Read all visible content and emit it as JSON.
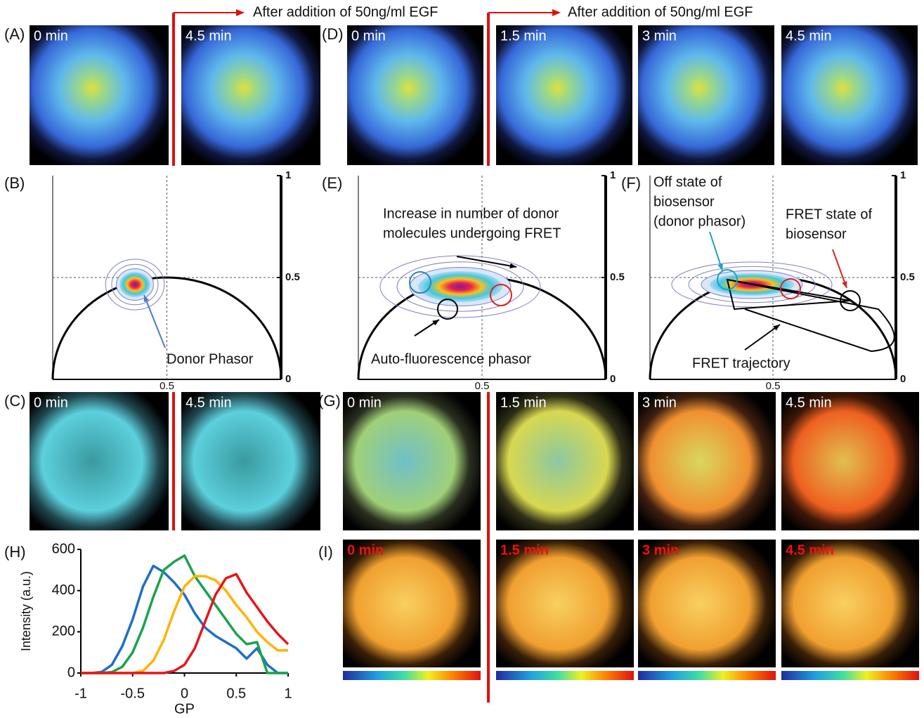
{
  "header": {
    "arrows": [
      "After addition of 50ng/ml EGF",
      "After addition of 50ng/ml EGF"
    ]
  },
  "panels": {
    "A": {
      "label": "(A)",
      "times": [
        "0 min",
        "4.5 min"
      ]
    },
    "D": {
      "label": "(D)",
      "times": [
        "0 min",
        "1.5 min",
        "3 min",
        "4.5 min"
      ]
    },
    "B": {
      "label": "(B)",
      "annotations": [
        "Donor Phasor"
      ],
      "xlim": [
        0,
        1
      ],
      "ylim": [
        0,
        1
      ],
      "xticks": [
        0.5
      ],
      "yticks": [
        0,
        0.5,
        1
      ]
    },
    "E": {
      "label": "(E)",
      "annotations": [
        "Increase in number of donor",
        "molecules undergoing FRET",
        "Auto-fluorescence phasor"
      ],
      "xlim": [
        0,
        1
      ],
      "ylim": [
        0,
        1
      ],
      "xticks": [
        0.5
      ],
      "yticks": [
        0,
        0.5,
        1
      ]
    },
    "F": {
      "label": "(F)",
      "annotations": [
        "Off state of",
        "biosensor",
        "(donor phasor)",
        "FRET state of",
        "biosensor",
        "FRET trajectory"
      ],
      "xlim": [
        0,
        1
      ],
      "ylim": [
        0,
        1
      ],
      "xticks": [
        0.5
      ],
      "yticks": [
        0,
        0.5,
        1
      ]
    },
    "C": {
      "label": "(C)",
      "times": [
        "0 min",
        "4.5 min"
      ]
    },
    "G": {
      "label": "(G)",
      "times": [
        "0 min",
        "1.5 min",
        "3 min",
        "4.5 min"
      ]
    },
    "H": {
      "label": "(H)"
    },
    "I": {
      "label": "(I)",
      "times": [
        "0 min",
        "1.5 min",
        "3 min",
        "4.5 min"
      ]
    }
  },
  "chart_data": {
    "type": "line",
    "x_label": "GP",
    "y_label": "Intensity (a.u.)",
    "x": [
      -1,
      -0.9,
      -0.8,
      -0.7,
      -0.6,
      -0.5,
      -0.4,
      -0.3,
      -0.2,
      -0.1,
      0,
      0.1,
      0.2,
      0.3,
      0.4,
      0.5,
      0.6,
      0.7,
      0.8,
      0.9,
      1
    ],
    "series": [
      {
        "color": "#1f6fc4",
        "values": [
          0,
          0,
          5,
          40,
          130,
          260,
          420,
          520,
          490,
          440,
          380,
          290,
          220,
          180,
          150,
          120,
          70,
          120,
          40,
          0,
          0
        ]
      },
      {
        "color": "#1aa34a",
        "values": [
          0,
          0,
          0,
          5,
          30,
          100,
          220,
          370,
          500,
          540,
          570,
          470,
          400,
          330,
          260,
          190,
          140,
          150,
          0,
          0,
          0
        ]
      },
      {
        "color": "#ffb300",
        "values": [
          0,
          0,
          0,
          0,
          0,
          0,
          10,
          60,
          160,
          300,
          420,
          470,
          470,
          450,
          400,
          330,
          270,
          200,
          150,
          110,
          110
        ]
      },
      {
        "color": "#e8141c",
        "values": [
          0,
          0,
          0,
          0,
          0,
          0,
          0,
          0,
          0,
          10,
          40,
          120,
          250,
          380,
          460,
          480,
          390,
          320,
          250,
          190,
          140
        ]
      }
    ],
    "xlim": [
      -1,
      1
    ],
    "ylim": [
      0,
      600
    ],
    "xticks": [
      -1,
      -0.5,
      0,
      0.5,
      1
    ],
    "yticks": [
      0,
      200,
      400,
      600
    ]
  }
}
